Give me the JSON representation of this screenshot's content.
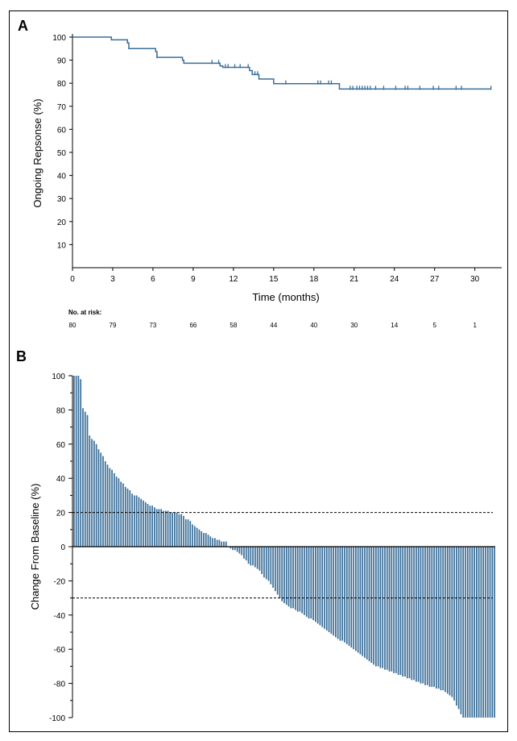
{
  "chart_data": [
    {
      "panel": "A",
      "type": "line",
      "subtype": "kaplan-meier",
      "title": "",
      "xlabel": "Time (months)",
      "ylabel": "Ongoing Repsonse (%)",
      "xlim": [
        0,
        32
      ],
      "ylim": [
        0,
        100
      ],
      "xticks": [
        0,
        3,
        6,
        9,
        12,
        15,
        18,
        21,
        24,
        27,
        30
      ],
      "yticks": [
        10,
        20,
        30,
        40,
        50,
        60,
        70,
        80,
        90,
        100
      ],
      "color": "#3a6e99",
      "steps": [
        [
          0,
          100
        ],
        [
          2.9,
          98.8
        ],
        [
          4.1,
          97.5
        ],
        [
          4.2,
          95
        ],
        [
          6.2,
          93.7
        ],
        [
          6.3,
          91.2
        ],
        [
          8.2,
          90
        ],
        [
          8.3,
          88.7
        ],
        [
          11.0,
          87.5
        ],
        [
          11.2,
          86.9
        ],
        [
          13.2,
          85.5
        ],
        [
          13.4,
          83.8
        ],
        [
          13.9,
          81.8
        ],
        [
          15.0,
          79.8
        ],
        [
          19.9,
          77.5
        ],
        [
          31.2,
          77.5
        ]
      ],
      "censor_times": [
        4.1,
        6.3,
        10.4,
        10.9,
        11.4,
        11.6,
        12.1,
        12.5,
        13.1,
        13.6,
        13.8,
        15.9,
        18.3,
        18.5,
        19.1,
        19.3,
        20.7,
        20.9,
        21.2,
        21.4,
        21.6,
        21.8,
        22.0,
        22.2,
        22.6,
        23.2,
        24.1,
        24.8,
        25.0,
        25.9,
        26.9,
        27.3,
        28.6,
        29.0,
        31.2
      ],
      "risk_table": {
        "label": "No. at risk:",
        "times": [
          0,
          3,
          6,
          9,
          12,
          15,
          18,
          21,
          24,
          27,
          30
        ],
        "counts": [
          "80",
          "79",
          "73",
          "66",
          "58",
          "44",
          "40",
          "30",
          "14",
          "5",
          "1"
        ]
      }
    },
    {
      "panel": "B",
      "type": "bar",
      "subtype": "waterfall",
      "title": "",
      "xlabel": "",
      "ylabel": "Change From Baseline (%)",
      "ylim": [
        -100,
        100
      ],
      "yticks": [
        100,
        80,
        60,
        40,
        20,
        0,
        -20,
        -40,
        -60,
        -80,
        -100
      ],
      "reference_lines": [
        20,
        -30
      ],
      "color": "#3a6e99",
      "values": [
        100,
        100,
        100,
        98,
        81,
        79,
        77,
        65,
        63,
        62,
        60,
        57,
        55,
        53,
        50,
        48,
        46,
        45,
        43,
        41,
        40,
        38,
        37,
        35,
        34,
        33,
        31,
        30,
        30,
        29,
        28,
        27,
        26,
        25,
        24,
        24,
        23,
        22,
        22,
        22,
        21,
        21,
        21,
        20,
        20,
        20,
        20,
        19,
        19,
        18,
        16,
        16,
        15,
        13,
        12,
        11,
        10,
        9,
        8,
        8,
        7,
        6,
        5,
        5,
        4,
        4,
        3,
        3,
        3,
        0,
        -1,
        -2,
        -2,
        -3,
        -4,
        -5,
        -7,
        -8,
        -10,
        -11,
        -11,
        -12,
        -13,
        -14,
        -16,
        -18,
        -19,
        -20,
        -22,
        -24,
        -26,
        -28,
        -30,
        -32,
        -33,
        -34,
        -35,
        -36,
        -36,
        -37,
        -38,
        -38,
        -39,
        -40,
        -41,
        -42,
        -42,
        -43,
        -44,
        -45,
        -46,
        -47,
        -48,
        -49,
        -50,
        -51,
        -52,
        -53,
        -54,
        -55,
        -55,
        -56,
        -57,
        -58,
        -59,
        -60,
        -61,
        -62,
        -63,
        -64,
        -65,
        -66,
        -67,
        -68,
        -69,
        -70,
        -70,
        -71,
        -71,
        -72,
        -72,
        -73,
        -73,
        -74,
        -74,
        -75,
        -75,
        -76,
        -76,
        -77,
        -77,
        -78,
        -78,
        -79,
        -79,
        -80,
        -80,
        -81,
        -81,
        -82,
        -82,
        -82,
        -83,
        -83,
        -84,
        -84,
        -85,
        -86,
        -87,
        -88,
        -90,
        -93,
        -95,
        -98,
        -100,
        -100,
        -100,
        -100,
        -100,
        -100,
        -100,
        -100,
        -100,
        -100,
        -100,
        -100,
        -100,
        -100,
        -100
      ]
    }
  ],
  "panels": {
    "a_label": "A",
    "b_label": "B"
  }
}
